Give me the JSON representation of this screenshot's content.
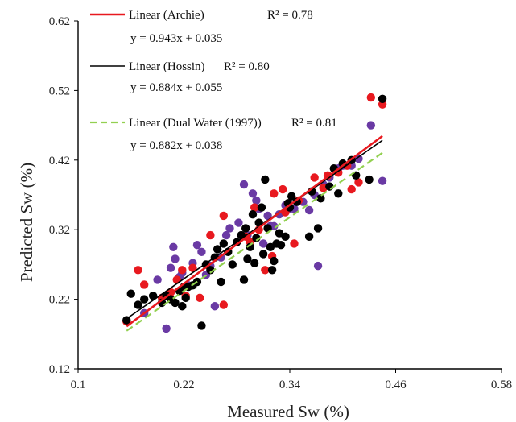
{
  "chart_data": {
    "type": "scatter",
    "xlabel": "Measured Sw (%)",
    "ylabel": "Predicted Sw (%)",
    "xlim": [
      0.1,
      0.58
    ],
    "ylim": [
      0.12,
      0.62
    ],
    "x_ticks": [
      "0.1",
      "0.22",
      "0.34",
      "0.46",
      "0.58"
    ],
    "y_ticks": [
      "0.12",
      "0.22",
      "0.32",
      "0.42",
      "0.52",
      "0.62"
    ],
    "series": [
      {
        "name": "Archie",
        "color": "#e8191f",
        "points": [
          [
            0.155,
            0.188
          ],
          [
            0.168,
            0.262
          ],
          [
            0.175,
            0.241
          ],
          [
            0.195,
            0.222
          ],
          [
            0.205,
            0.23
          ],
          [
            0.212,
            0.248
          ],
          [
            0.218,
            0.262
          ],
          [
            0.222,
            0.225
          ],
          [
            0.23,
            0.265
          ],
          [
            0.238,
            0.222
          ],
          [
            0.25,
            0.312
          ],
          [
            0.265,
            0.34
          ],
          [
            0.265,
            0.212
          ],
          [
            0.29,
            0.31
          ],
          [
            0.295,
            0.302
          ],
          [
            0.3,
            0.352
          ],
          [
            0.305,
            0.32
          ],
          [
            0.312,
            0.262
          ],
          [
            0.32,
            0.282
          ],
          [
            0.322,
            0.372
          ],
          [
            0.332,
            0.378
          ],
          [
            0.335,
            0.345
          ],
          [
            0.345,
            0.3
          ],
          [
            0.35,
            0.362
          ],
          [
            0.368,
            0.395
          ],
          [
            0.378,
            0.38
          ],
          [
            0.383,
            0.398
          ],
          [
            0.395,
            0.402
          ],
          [
            0.405,
            0.412
          ],
          [
            0.41,
            0.378
          ],
          [
            0.418,
            0.388
          ],
          [
            0.432,
            0.51
          ],
          [
            0.445,
            0.5
          ]
        ]
      },
      {
        "name": "Hossin",
        "color": "#000000",
        "points": [
          [
            0.155,
            0.19
          ],
          [
            0.16,
            0.228
          ],
          [
            0.168,
            0.212
          ],
          [
            0.175,
            0.22
          ],
          [
            0.185,
            0.225
          ],
          [
            0.195,
            0.215
          ],
          [
            0.2,
            0.225
          ],
          [
            0.205,
            0.22
          ],
          [
            0.21,
            0.215
          ],
          [
            0.215,
            0.232
          ],
          [
            0.218,
            0.21
          ],
          [
            0.22,
            0.238
          ],
          [
            0.222,
            0.222
          ],
          [
            0.225,
            0.238
          ],
          [
            0.23,
            0.24
          ],
          [
            0.235,
            0.245
          ],
          [
            0.24,
            0.182
          ],
          [
            0.245,
            0.27
          ],
          [
            0.25,
            0.262
          ],
          [
            0.255,
            0.28
          ],
          [
            0.258,
            0.292
          ],
          [
            0.262,
            0.245
          ],
          [
            0.265,
            0.3
          ],
          [
            0.27,
            0.288
          ],
          [
            0.275,
            0.27
          ],
          [
            0.28,
            0.302
          ],
          [
            0.285,
            0.312
          ],
          [
            0.288,
            0.248
          ],
          [
            0.29,
            0.322
          ],
          [
            0.292,
            0.278
          ],
          [
            0.295,
            0.295
          ],
          [
            0.298,
            0.342
          ],
          [
            0.3,
            0.272
          ],
          [
            0.302,
            0.308
          ],
          [
            0.305,
            0.33
          ],
          [
            0.308,
            0.352
          ],
          [
            0.31,
            0.285
          ],
          [
            0.312,
            0.392
          ],
          [
            0.315,
            0.322
          ],
          [
            0.318,
            0.295
          ],
          [
            0.32,
            0.262
          ],
          [
            0.322,
            0.275
          ],
          [
            0.325,
            0.3
          ],
          [
            0.328,
            0.315
          ],
          [
            0.33,
            0.298
          ],
          [
            0.335,
            0.31
          ],
          [
            0.338,
            0.358
          ],
          [
            0.34,
            0.352
          ],
          [
            0.342,
            0.368
          ],
          [
            0.348,
            0.36
          ],
          [
            0.362,
            0.31
          ],
          [
            0.365,
            0.375
          ],
          [
            0.372,
            0.322
          ],
          [
            0.375,
            0.365
          ],
          [
            0.385,
            0.382
          ],
          [
            0.39,
            0.408
          ],
          [
            0.395,
            0.372
          ],
          [
            0.4,
            0.415
          ],
          [
            0.41,
            0.42
          ],
          [
            0.415,
            0.398
          ],
          [
            0.43,
            0.392
          ],
          [
            0.445,
            0.508
          ]
        ]
      },
      {
        "name": "Dual Water (1997)",
        "color": "#6a3aa4",
        "points": [
          [
            0.175,
            0.2
          ],
          [
            0.19,
            0.248
          ],
          [
            0.2,
            0.178
          ],
          [
            0.205,
            0.265
          ],
          [
            0.208,
            0.295
          ],
          [
            0.21,
            0.278
          ],
          [
            0.215,
            0.252
          ],
          [
            0.218,
            0.258
          ],
          [
            0.225,
            0.24
          ],
          [
            0.23,
            0.272
          ],
          [
            0.235,
            0.298
          ],
          [
            0.24,
            0.288
          ],
          [
            0.245,
            0.255
          ],
          [
            0.25,
            0.268
          ],
          [
            0.255,
            0.21
          ],
          [
            0.262,
            0.28
          ],
          [
            0.268,
            0.312
          ],
          [
            0.272,
            0.322
          ],
          [
            0.282,
            0.33
          ],
          [
            0.288,
            0.385
          ],
          [
            0.292,
            0.312
          ],
          [
            0.298,
            0.372
          ],
          [
            0.302,
            0.362
          ],
          [
            0.305,
            0.35
          ],
          [
            0.31,
            0.3
          ],
          [
            0.315,
            0.34
          ],
          [
            0.318,
            0.325
          ],
          [
            0.322,
            0.325
          ],
          [
            0.328,
            0.342
          ],
          [
            0.335,
            0.355
          ],
          [
            0.34,
            0.35
          ],
          [
            0.345,
            0.35
          ],
          [
            0.355,
            0.36
          ],
          [
            0.362,
            0.348
          ],
          [
            0.368,
            0.37
          ],
          [
            0.372,
            0.268
          ],
          [
            0.378,
            0.385
          ],
          [
            0.385,
            0.395
          ],
          [
            0.395,
            0.408
          ],
          [
            0.4,
            0.412
          ],
          [
            0.41,
            0.412
          ],
          [
            0.418,
            0.422
          ],
          [
            0.432,
            0.47
          ],
          [
            0.445,
            0.39
          ]
        ]
      }
    ],
    "trendlines": [
      {
        "name": "Linear (Archie)",
        "slope": 0.943,
        "intercept": 0.035,
        "x_range": [
          0.155,
          0.445
        ],
        "color": "#e8191f",
        "style": "solid",
        "equation": "y = 0.943x + 0.035",
        "r2": "R² = 0.78"
      },
      {
        "name": "Linear (Hossin)",
        "slope": 0.884,
        "intercept": 0.055,
        "x_range": [
          0.155,
          0.445
        ],
        "color": "#000000",
        "style": "solid",
        "equation": "y = 0.884x + 0.055",
        "r2": "R² = 0.80"
      },
      {
        "name": "Linear (Dual Water (1997))",
        "slope": 0.882,
        "intercept": 0.038,
        "x_range": [
          0.155,
          0.445
        ],
        "color": "#92d050",
        "style": "dashed",
        "equation": "y = 0.882x + 0.038",
        "r2": "R² = 0.81"
      }
    ],
    "grid": false,
    "legend_position": "top-left"
  }
}
